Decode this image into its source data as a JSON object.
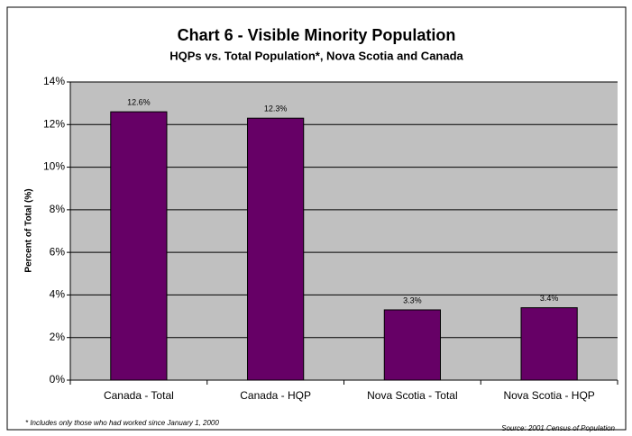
{
  "chart_data": {
    "type": "bar",
    "title": "Chart 6 - Visible Minority Population",
    "subtitle": "HQPs vs. Total Population*, Nova Scotia and Canada",
    "y_label": "Percent of Total (%)",
    "categories": [
      "Canada - Total",
      "Canada - HQP",
      "Nova Scotia - Total",
      "Nova Scotia - HQP"
    ],
    "values": [
      12.6,
      12.3,
      3.3,
      3.4
    ],
    "value_labels": [
      "12.6%",
      "12.3%",
      "3.3%",
      "3.4%"
    ],
    "color": "#660066",
    "ylim": [
      0,
      14
    ],
    "yticks": [
      {
        "value": 0,
        "label": "0%"
      },
      {
        "value": 2,
        "label": "2%"
      },
      {
        "value": 4,
        "label": "4%"
      },
      {
        "value": 6,
        "label": "6%"
      },
      {
        "value": 8,
        "label": "8%"
      },
      {
        "value": 10,
        "label": "10%"
      },
      {
        "value": 12,
        "label": "12%"
      },
      {
        "value": 14,
        "label": "14%"
      }
    ],
    "grid": true,
    "footnote": "* Includes only those who had worked since January 1, 2000",
    "source": "Source:  2001 Census of Population"
  }
}
